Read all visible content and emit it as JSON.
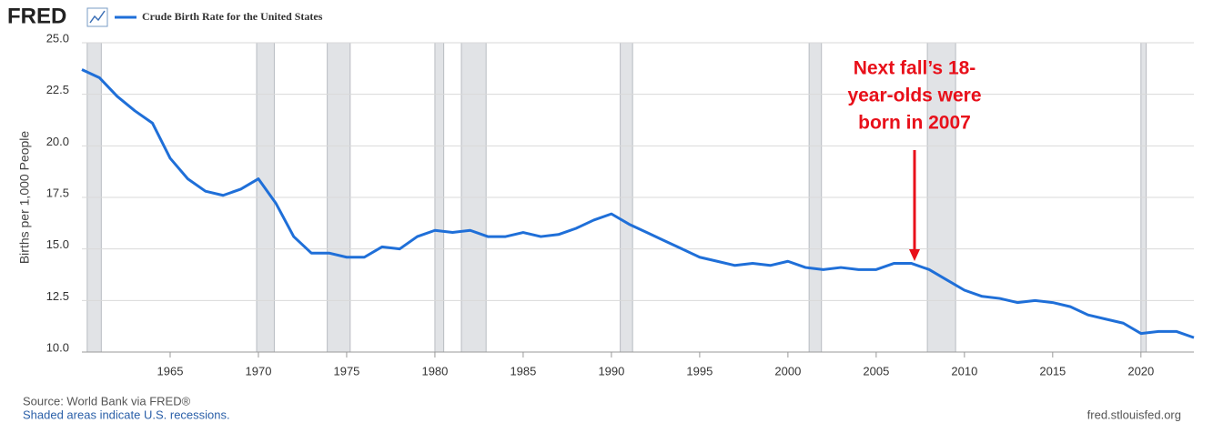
{
  "header": {
    "logo": "FRED"
  },
  "chart_data": {
    "type": "line",
    "y_axis_label": "Births per 1,000 People",
    "series": [
      {
        "name": "Crude Birth Rate for the United States",
        "color": "#1f6fd8",
        "values": [
          23.7,
          23.3,
          22.4,
          21.7,
          21.1,
          19.4,
          18.4,
          17.8,
          17.6,
          17.9,
          18.4,
          17.2,
          15.6,
          14.8,
          14.8,
          14.6,
          14.6,
          15.1,
          15.0,
          15.6,
          15.9,
          15.8,
          15.9,
          15.6,
          15.6,
          15.8,
          15.6,
          15.7,
          16.0,
          16.4,
          16.7,
          16.2,
          15.8,
          15.4,
          15.0,
          14.6,
          14.4,
          14.2,
          14.3,
          14.2,
          14.4,
          14.1,
          14.0,
          14.1,
          14.0,
          14.0,
          14.3,
          14.3,
          14.0,
          13.5,
          13.0,
          12.7,
          12.6,
          12.4,
          12.5,
          12.4,
          12.2,
          11.8,
          11.6,
          11.4,
          10.9,
          11.0,
          11.0,
          10.7
        ]
      }
    ],
    "x": [
      1960,
      1961,
      1962,
      1963,
      1964,
      1965,
      1966,
      1967,
      1968,
      1969,
      1970,
      1971,
      1972,
      1973,
      1974,
      1975,
      1976,
      1977,
      1978,
      1979,
      1980,
      1981,
      1982,
      1983,
      1984,
      1985,
      1986,
      1987,
      1988,
      1989,
      1990,
      1991,
      1992,
      1993,
      1994,
      1995,
      1996,
      1997,
      1998,
      1999,
      2000,
      2001,
      2002,
      2003,
      2004,
      2005,
      2006,
      2007,
      2008,
      2009,
      2010,
      2011,
      2012,
      2013,
      2014,
      2015,
      2016,
      2017,
      2018,
      2019,
      2020,
      2021,
      2022,
      2023
    ],
    "xlim": [
      1960,
      2023
    ],
    "xticks": [
      1965,
      1970,
      1975,
      1980,
      1985,
      1990,
      1995,
      2000,
      2005,
      2010,
      2015,
      2020
    ],
    "ylim": [
      10,
      25
    ],
    "yticks": [
      {
        "value": 10,
        "label": "10.0"
      },
      {
        "value": 12.5,
        "label": "12.5"
      },
      {
        "value": 15,
        "label": "15.0"
      },
      {
        "value": 17.5,
        "label": "17.5"
      },
      {
        "value": 20,
        "label": "20.0"
      },
      {
        "value": 22.5,
        "label": "22.5"
      },
      {
        "value": 25,
        "label": "25.0"
      }
    ],
    "grid": true,
    "recessions": [
      [
        1960.3,
        1961.1
      ],
      [
        1969.9,
        1970.9
      ],
      [
        1973.9,
        1975.2
      ],
      [
        1980.0,
        1980.5
      ],
      [
        1981.5,
        1982.9
      ],
      [
        1990.5,
        1991.2
      ],
      [
        2001.2,
        2001.9
      ],
      [
        2007.9,
        2009.5
      ],
      [
        2020.0,
        2020.3
      ]
    ],
    "recession_color": "#e1e3e6",
    "annotation": {
      "lines": [
        "Next fall’s 18-",
        "year-olds were",
        "born in 2007"
      ],
      "color": "#e8101a"
    }
  },
  "footer": {
    "source": "Source: World Bank via FRED®",
    "note": "Shaded areas indicate U.S. recessions.",
    "site": "fred.stlouisfed.org"
  }
}
